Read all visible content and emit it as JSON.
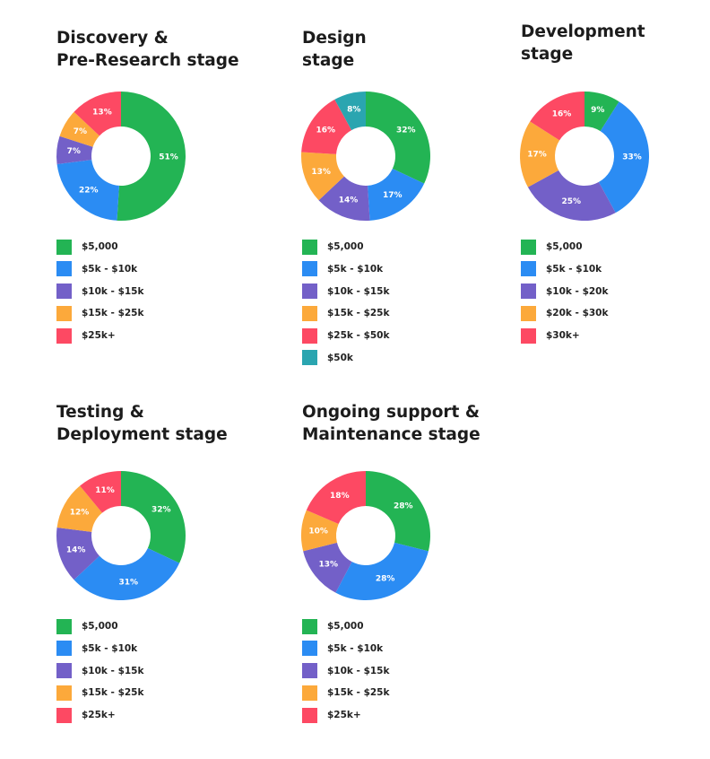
{
  "colors": {
    "green": "#23b454",
    "blue": "#2b8cf3",
    "purple": "#7360c8",
    "orange": "#fca93b",
    "red": "#fd4963",
    "teal": "#2aa5b0"
  },
  "chart_data": [
    {
      "type": "pie",
      "title": [
        "Discovery &",
        "Pre-Research stage"
      ],
      "categories": [
        "$5,000",
        "$5k - $10k",
        "$10k - $15k",
        "$15k - $25k",
        "$25k+"
      ],
      "values": [
        51,
        22,
        7,
        7,
        13
      ],
      "labels": [
        "51%",
        "22%",
        "7%",
        "7%",
        "13%"
      ],
      "colors": [
        "#23b454",
        "#2b8cf3",
        "#7360c8",
        "#fca93b",
        "#fd4963"
      ],
      "legend": "bottom"
    },
    {
      "type": "pie",
      "title": [
        "Design",
        "stage"
      ],
      "categories": [
        "$5,000",
        "$5k - $10k",
        "$10k - $15k",
        "$15k - $25k",
        "$25k - $50k",
        "$50k"
      ],
      "values": [
        32,
        17,
        14,
        13,
        16,
        8
      ],
      "labels": [
        "32%",
        "17%",
        "14%",
        "13%",
        "16%",
        "8%"
      ],
      "colors": [
        "#23b454",
        "#2b8cf3",
        "#7360c8",
        "#fca93b",
        "#fd4963",
        "#2aa5b0"
      ],
      "legend": "bottom"
    },
    {
      "type": "pie",
      "title": [
        "Development",
        "stage"
      ],
      "categories": [
        "$5,000",
        "$5k - $10k",
        "$10k - $20k",
        "$20k - $30k",
        "$30k+"
      ],
      "values": [
        9,
        33,
        25,
        17,
        16
      ],
      "labels": [
        "9%",
        "33%",
        "25%",
        "17%",
        "16%"
      ],
      "colors": [
        "#23b454",
        "#2b8cf3",
        "#7360c8",
        "#fca93b",
        "#fd4963"
      ],
      "legend": "bottom"
    },
    {
      "type": "pie",
      "title": [
        "Testing &",
        "Deployment stage"
      ],
      "categories": [
        "$5,000",
        "$5k - $10k",
        "$10k - $15k",
        "$15k - $25k",
        "$25k+"
      ],
      "values": [
        32,
        31,
        14,
        12,
        11
      ],
      "labels": [
        "32%",
        "31%",
        "14%",
        "12%",
        "11%"
      ],
      "colors": [
        "#23b454",
        "#2b8cf3",
        "#7360c8",
        "#fca93b",
        "#fd4963"
      ],
      "legend": "bottom"
    },
    {
      "type": "pie",
      "title": [
        "Ongoing support &",
        "Maintenance stage"
      ],
      "categories": [
        "$5,000",
        "$5k - $10k",
        "$10k - $15k",
        "$15k - $25k",
        "$25k+"
      ],
      "values": [
        28,
        28,
        13,
        10,
        18
      ],
      "labels": [
        "28%",
        "28%",
        "13%",
        "10%",
        "18%"
      ],
      "colors": [
        "#23b454",
        "#2b8cf3",
        "#7360c8",
        "#fca93b",
        "#fd4963"
      ],
      "legend": "bottom"
    }
  ]
}
